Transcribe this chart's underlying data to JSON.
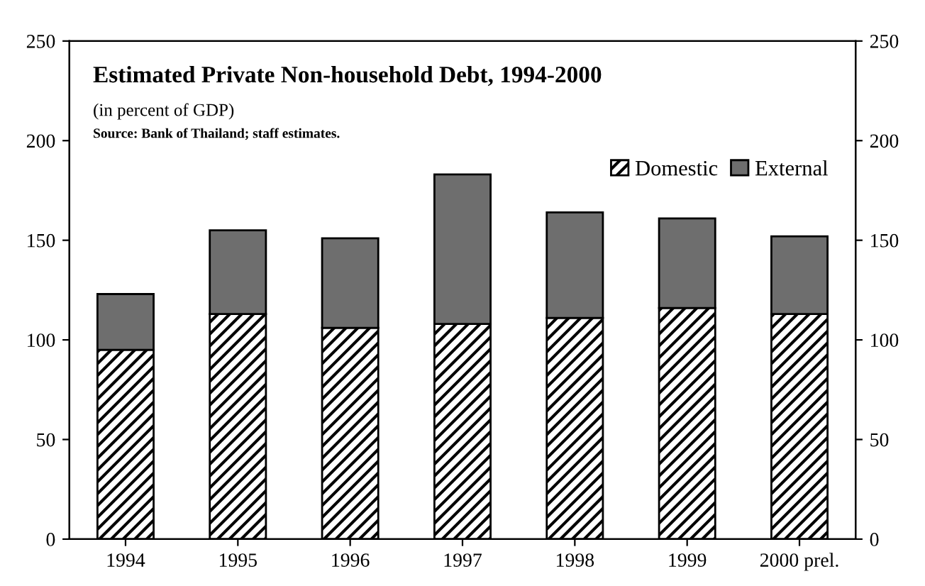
{
  "chart_data": {
    "type": "bar",
    "title": "Estimated Private Non-household Debt, 1994-2000",
    "subtitle": "(in percent of GDP)",
    "annotations": [
      "Source: Bank of Thailand; staff estimates."
    ],
    "categories": [
      "1994",
      "1995",
      "1996",
      "1997",
      "1998",
      "1999",
      "2000 prel."
    ],
    "stacked": true,
    "series": [
      {
        "name": "Domestic",
        "color": "#000000",
        "values": [
          95,
          113,
          106,
          108,
          111,
          116,
          113
        ]
      },
      {
        "name": "External",
        "color": "#6e6e6e",
        "values": [
          28,
          42,
          45,
          75,
          53,
          45,
          39
        ]
      }
    ],
    "ylim": [
      0,
      250
    ],
    "yticks": [
      0,
      50,
      100,
      150,
      200,
      250
    ],
    "y2lim": [
      0,
      250
    ],
    "y2ticks": [
      0,
      50,
      100,
      150,
      200,
      250
    ],
    "legend": "top right",
    "grid": false
  }
}
